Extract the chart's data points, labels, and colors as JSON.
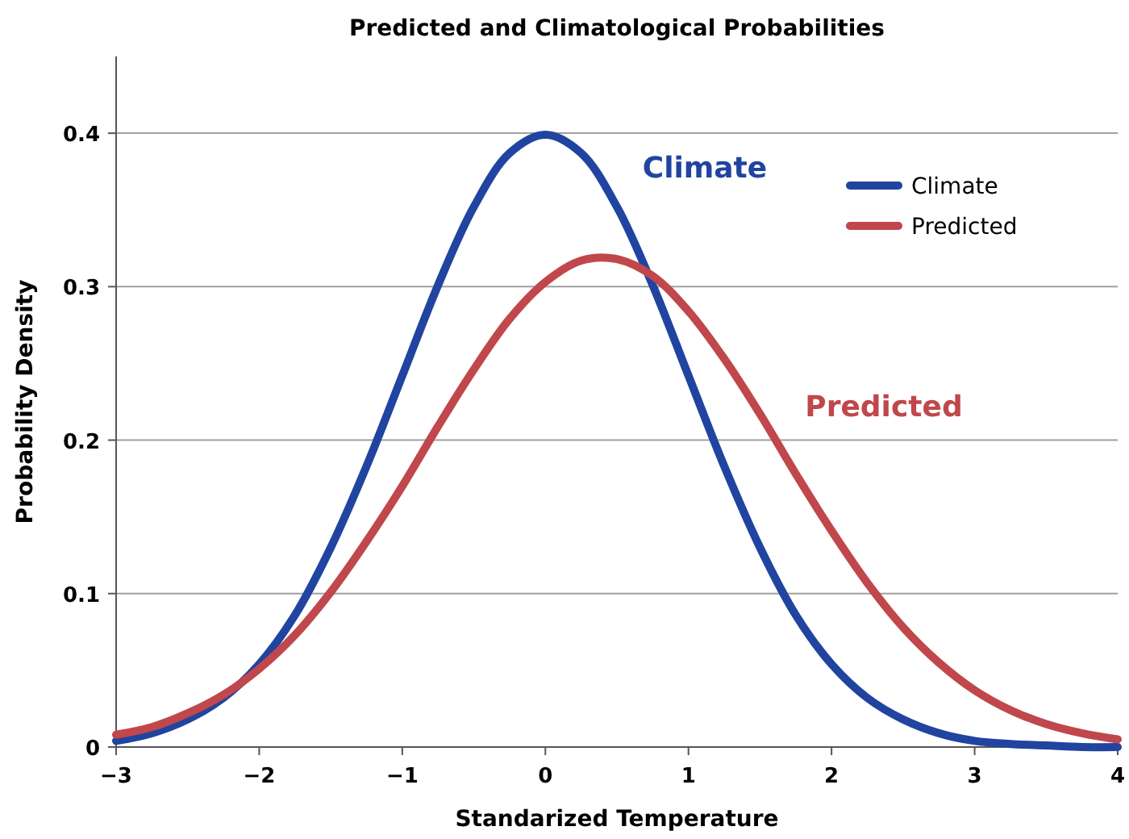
{
  "chart_data": {
    "type": "line",
    "title": "Predicted and Climatological Probabilities",
    "xlabel": "Standarized Temperature",
    "ylabel": "Probability Density",
    "x": [
      -3,
      -2.75,
      -2.5,
      -2.25,
      -2,
      -1.75,
      -1.5,
      -1.25,
      -1,
      -0.75,
      -0.5,
      -0.25,
      0,
      0.25,
      0.5,
      0.75,
      1,
      1.25,
      1.5,
      1.75,
      2,
      2.25,
      2.5,
      2.75,
      3,
      3.25,
      3.5,
      3.75,
      4
    ],
    "series": [
      {
        "name": "Climate",
        "color": "#2044a0",
        "values": [
          0.004,
          0.009,
          0.018,
          0.032,
          0.054,
          0.086,
          0.13,
          0.183,
          0.242,
          0.301,
          0.352,
          0.387,
          0.399,
          0.387,
          0.352,
          0.301,
          0.242,
          0.183,
          0.13,
          0.086,
          0.054,
          0.032,
          0.018,
          0.009,
          0.004,
          0.002,
          0.001,
          0.0,
          0.0
        ]
      },
      {
        "name": "Predicted",
        "color": "#c0474b",
        "values": [
          0.008,
          0.013,
          0.022,
          0.034,
          0.051,
          0.073,
          0.101,
          0.134,
          0.17,
          0.209,
          0.246,
          0.279,
          0.303,
          0.317,
          0.318,
          0.307,
          0.284,
          0.253,
          0.217,
          0.178,
          0.141,
          0.107,
          0.078,
          0.055,
          0.037,
          0.024,
          0.015,
          0.009,
          0.005
        ]
      }
    ],
    "xlim": [
      -3,
      4
    ],
    "xticks": [
      {
        "value": -3,
        "label": "−3"
      },
      {
        "value": -2,
        "label": "−2"
      },
      {
        "value": -1,
        "label": "−1"
      },
      0,
      1,
      2,
      3,
      4
    ],
    "ylim": [
      0,
      0.45
    ],
    "yticks": [
      0,
      0.1,
      0.2,
      0.3,
      0.4
    ],
    "grid": "y",
    "legend": "top right",
    "line_style": "solid",
    "marker": "none",
    "annotations": [
      "Climate",
      "Predicted"
    ]
  }
}
